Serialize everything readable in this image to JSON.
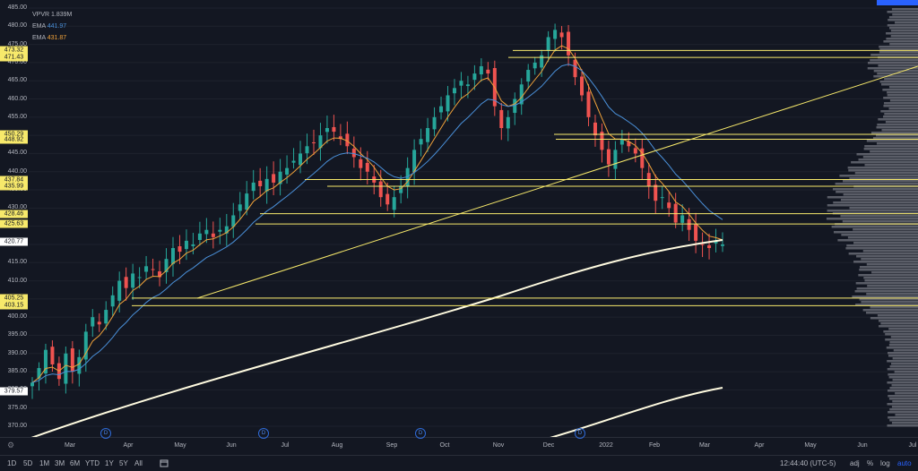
{
  "legend": {
    "vpvr_label": "VPVR",
    "vpvr_value": "1.839M",
    "ema1_label": "EMA",
    "ema1_value": "441.97",
    "ema2_label": "EMA",
    "ema2_value": "431.87"
  },
  "price_axis": {
    "ticks": [
      "485.00",
      "480.00",
      "475.00",
      "470.00",
      "465.00",
      "460.00",
      "455.00",
      "450.00",
      "445.00",
      "440.00",
      "435.00",
      "430.00",
      "425.00",
      "420.00",
      "415.00",
      "410.00",
      "405.00",
      "400.00",
      "395.00",
      "390.00",
      "385.00",
      "380.00",
      "375.00",
      "370.00"
    ],
    "tags": [
      {
        "text": "473.32",
        "value": 473.32
      },
      {
        "text": "471.43",
        "value": 471.43
      },
      {
        "text": "450.29",
        "value": 450.29
      },
      {
        "text": "448.92",
        "value": 448.92
      },
      {
        "text": "437.84",
        "value": 437.84
      },
      {
        "text": "435.99",
        "value": 435.99
      },
      {
        "text": "428.46",
        "value": 428.46
      },
      {
        "text": "425.63",
        "value": 425.63
      },
      {
        "text": "420.77",
        "value": 420.77,
        "white": true
      },
      {
        "text": "405.25",
        "value": 405.25
      },
      {
        "text": "403.15",
        "value": 403.15
      },
      {
        "text": "379.57",
        "value": 379.57,
        "white": true
      }
    ]
  },
  "time_axis": [
    "Mar",
    "Apr",
    "May",
    "Jun",
    "Jul",
    "Aug",
    "Sep",
    "Oct",
    "Nov",
    "Dec",
    "2022",
    "Feb",
    "Mar",
    "Apr",
    "May",
    "Jun",
    "Jul"
  ],
  "dividend_marker": "D",
  "bottom_bar": {
    "ranges": [
      "1D",
      "5D",
      "1M",
      "3M",
      "6M",
      "YTD",
      "1Y",
      "5Y",
      "All"
    ],
    "time": "12:44:40 (UTC-5)",
    "adj": "adj",
    "percent": "%",
    "log": "log",
    "auto": "auto"
  },
  "colors": {
    "background": "#131722",
    "support_lines": "#f7e96b",
    "ema_fast": "#f0a23a",
    "ema_slow": "#4a90d9",
    "sma_long": "#fffbe0",
    "candle_up": "#26a69a",
    "candle_down": "#ef5350"
  },
  "chart_data": {
    "type": "candlestick",
    "y_range": [
      370,
      485
    ],
    "horizontal_levels": [
      473.32,
      471.43,
      450.29,
      448.92,
      437.84,
      435.99,
      428.46,
      425.63,
      405.25,
      403.15
    ],
    "closes": [
      382,
      386,
      391,
      387,
      383,
      390,
      385,
      389,
      396,
      400,
      398,
      402,
      406,
      410,
      408,
      412,
      411,
      414,
      413,
      411,
      416,
      419,
      418,
      421,
      420,
      423,
      424,
      422,
      424,
      425,
      428,
      431,
      434,
      437,
      436,
      438,
      437,
      440,
      441,
      443,
      445,
      447,
      448,
      450,
      452,
      451,
      449,
      447,
      444,
      441,
      440,
      437,
      433,
      431,
      433,
      436,
      441,
      446,
      449,
      452,
      455,
      458,
      461,
      463,
      465,
      464,
      467,
      469,
      467,
      458,
      452,
      455,
      460,
      464,
      468,
      470,
      472,
      477,
      479,
      477,
      472,
      466,
      461,
      455,
      450,
      446,
      442,
      446,
      449,
      447,
      445,
      441,
      436,
      432,
      433,
      430,
      426,
      428,
      424,
      421,
      420,
      419,
      421,
      420
    ]
  }
}
